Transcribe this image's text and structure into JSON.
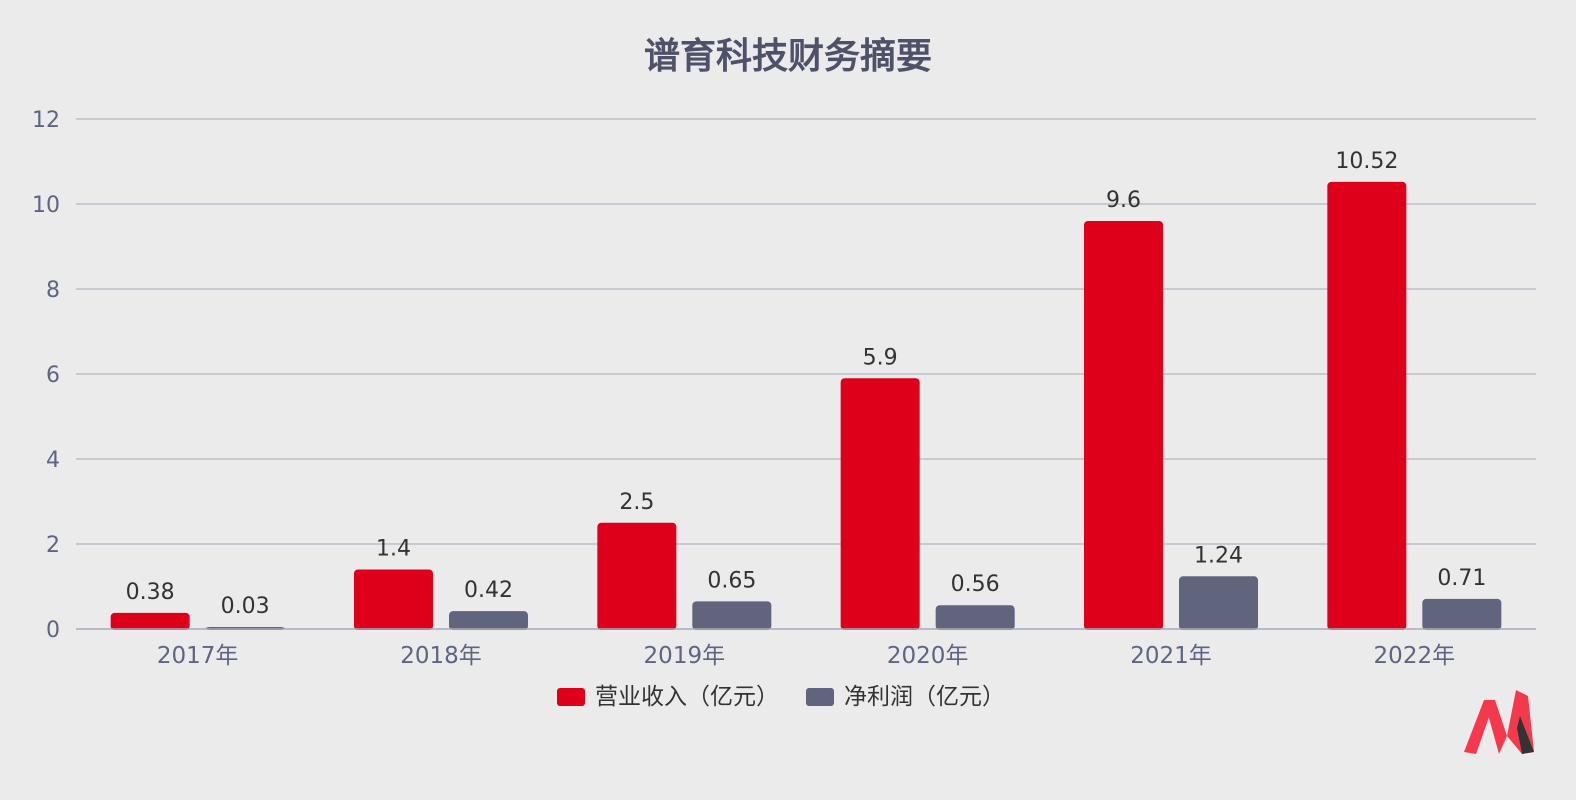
{
  "chart_data": {
    "type": "bar",
    "title": "谱育科技财务摘要",
    "categories": [
      "2017年",
      "2018年",
      "2019年",
      "2020年",
      "2021年",
      "2022年"
    ],
    "series": [
      {
        "name": "营业收入（亿元）",
        "color": "#de001a",
        "values": [
          0.38,
          1.4,
          2.5,
          5.9,
          9.6,
          10.52
        ],
        "labels": [
          "0.38",
          "1.4",
          "2.5",
          "5.9",
          "9.6",
          "10.52"
        ]
      },
      {
        "name": "净利润（亿元）",
        "color": "#60647d",
        "values": [
          0.03,
          0.42,
          0.65,
          0.56,
          1.24,
          0.71
        ],
        "labels": [
          "0.03",
          "0.42",
          "0.65",
          "0.56",
          "1.24",
          "0.71"
        ]
      }
    ],
    "ylim": [
      0,
      12
    ],
    "yticks": [
      0,
      2,
      4,
      6,
      8,
      10,
      12
    ],
    "ytick_labels": [
      "0",
      "2",
      "4",
      "6",
      "8",
      "10",
      "12"
    ],
    "grid": true,
    "legend_position": "bottom-center"
  },
  "logo": {
    "icon": "brand-logo-icon",
    "colors": [
      "#f4394d",
      "#333333"
    ]
  }
}
